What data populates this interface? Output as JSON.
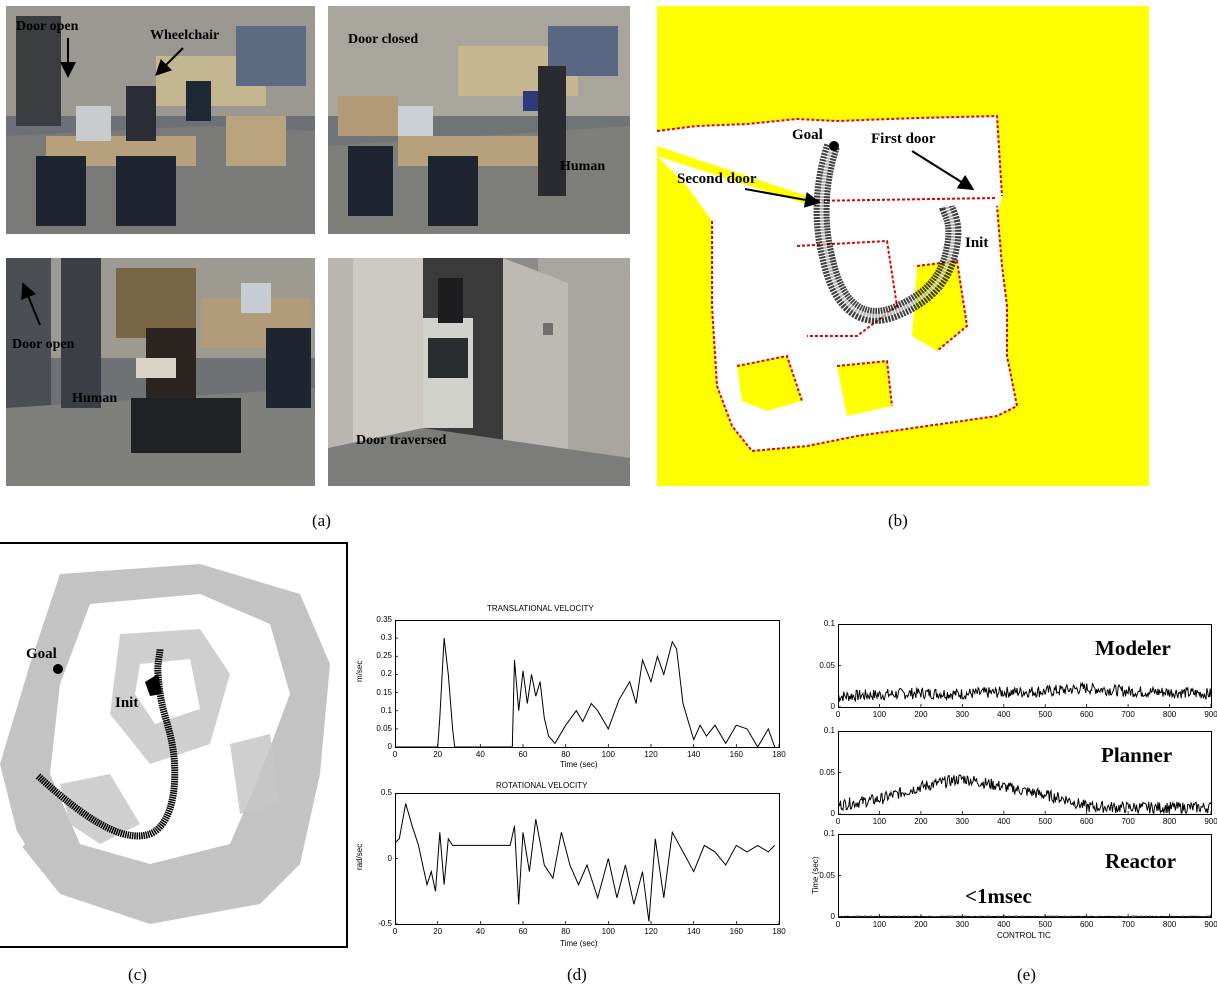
{
  "panel_a": {
    "caption": "(a)",
    "frames": [
      {
        "labels": [
          "Door open",
          "Wheelchair"
        ]
      },
      {
        "labels": [
          "Door closed",
          "Human"
        ]
      },
      {
        "labels": [
          "Door open",
          "Human"
        ]
      },
      {
        "labels": [
          "Door traversed"
        ]
      }
    ]
  },
  "panel_b": {
    "caption": "(b)",
    "labels": {
      "goal": "Goal",
      "first_door": "First door",
      "second_door": "Second door",
      "init": "Init"
    },
    "colors": {
      "background": "#ffff00",
      "obstacle": "#e00000",
      "free": "#ffffff"
    }
  },
  "panel_c": {
    "caption": "(c)",
    "labels": {
      "goal": "Goal",
      "init": "Init"
    }
  },
  "panel_d": {
    "caption": "(d)",
    "top": {
      "title": "TRANSLATIONAL VELOCITY",
      "ylabel": "m/sec",
      "xlabel": "Time (sec)",
      "yticks": [
        "0.35",
        "0.3",
        "0.25",
        "0.2",
        "0.15",
        "0.1",
        "0.05",
        "0"
      ]
    },
    "bottom": {
      "title": "ROTATIONAL VELOCITY",
      "ylabel": "rad/sec",
      "xlabel": "Time (sec)",
      "yticks": [
        "0.5",
        "0",
        "-0.5"
      ]
    },
    "xticks": [
      "0",
      "20",
      "40",
      "60",
      "80",
      "100",
      "120",
      "140",
      "160",
      "180"
    ]
  },
  "panel_e": {
    "caption": "(e)",
    "plots": [
      {
        "name": "Modeler",
        "yticks": [
          "0.1",
          "0.05",
          "0"
        ]
      },
      {
        "name": "Planner",
        "yticks": [
          "0.1",
          "0.05",
          "0"
        ]
      },
      {
        "name": "Reactor",
        "yticks": [
          "0.1",
          "0.05",
          "0"
        ],
        "note": "<1msec"
      }
    ],
    "ylabel": "Time (sec)",
    "xlabel": "CONTROL TIC",
    "xticks": [
      "0",
      "100",
      "200",
      "300",
      "400",
      "500",
      "600",
      "700",
      "800",
      "900"
    ]
  },
  "chart_data": [
    {
      "type": "line",
      "title": "TRANSLATIONAL VELOCITY",
      "xlabel": "Time (sec)",
      "ylabel": "m/sec",
      "xlim": [
        0,
        180
      ],
      "ylim": [
        0,
        0.35
      ],
      "x": [
        0,
        20,
        21,
        23,
        25,
        27,
        28,
        55,
        56,
        58,
        60,
        62,
        64,
        66,
        68,
        70,
        72,
        75,
        80,
        85,
        88,
        92,
        95,
        100,
        105,
        110,
        113,
        116,
        120,
        123,
        126,
        130,
        132,
        135,
        140,
        143,
        146,
        150,
        155,
        160,
        165,
        170,
        175,
        178
      ],
      "y": [
        0,
        0,
        0.08,
        0.3,
        0.2,
        0.05,
        0,
        0,
        0.24,
        0.1,
        0.21,
        0.12,
        0.2,
        0.14,
        0.18,
        0.08,
        0.03,
        0.01,
        0.06,
        0.1,
        0.07,
        0.12,
        0.1,
        0.05,
        0.13,
        0.18,
        0.12,
        0.24,
        0.18,
        0.25,
        0.2,
        0.29,
        0.27,
        0.12,
        0.02,
        0.06,
        0.03,
        0.06,
        0.01,
        0.06,
        0.05,
        0,
        0.05,
        0
      ]
    },
    {
      "type": "line",
      "title": "ROTATIONAL VELOCITY",
      "xlabel": "Time (sec)",
      "ylabel": "rad/sec",
      "xlim": [
        0,
        180
      ],
      "ylim": [
        -0.5,
        0.5
      ],
      "x": [
        0,
        2,
        5,
        8,
        11,
        13,
        15,
        17,
        19,
        21,
        23,
        25,
        27,
        30,
        40,
        50,
        54,
        56,
        58,
        60,
        63,
        66,
        70,
        74,
        78,
        82,
        86,
        90,
        95,
        100,
        104,
        108,
        112,
        116,
        119,
        122,
        126,
        130,
        135,
        140,
        145,
        150,
        155,
        160,
        165,
        170,
        175,
        178
      ],
      "y": [
        0.12,
        0.15,
        0.42,
        0.25,
        0.1,
        -0.05,
        -0.2,
        -0.1,
        -0.25,
        0.2,
        -0.2,
        0.15,
        0.1,
        0.1,
        0.1,
        0.1,
        0.1,
        0.25,
        -0.35,
        0.2,
        -0.1,
        0.3,
        -0.05,
        -0.15,
        0.2,
        -0.05,
        -0.2,
        -0.05,
        -0.3,
        0.0,
        -0.3,
        -0.05,
        -0.35,
        -0.1,
        -0.48,
        0.15,
        -0.3,
        0.2,
        0.05,
        -0.1,
        0.1,
        0.05,
        -0.05,
        0.1,
        0.05,
        0.1,
        0.05,
        0.1
      ]
    },
    {
      "type": "line",
      "title": "Modeler",
      "xlabel": "",
      "ylabel": "",
      "xlim": [
        0,
        900
      ],
      "ylim": [
        0,
        0.1
      ],
      "x": [
        0,
        100,
        200,
        300,
        400,
        500,
        600,
        700,
        800,
        900
      ],
      "y": [
        0.01,
        0.012,
        0.014,
        0.013,
        0.015,
        0.016,
        0.02,
        0.016,
        0.015,
        0.013
      ]
    },
    {
      "type": "line",
      "title": "Planner",
      "xlabel": "",
      "ylabel": "",
      "xlim": [
        0,
        900
      ],
      "ylim": [
        0,
        0.1
      ],
      "x": [
        0,
        100,
        200,
        250,
        300,
        350,
        400,
        450,
        500,
        550,
        600,
        700,
        800,
        900
      ],
      "y": [
        0.008,
        0.015,
        0.03,
        0.035,
        0.04,
        0.035,
        0.03,
        0.025,
        0.02,
        0.015,
        0.006,
        0.005,
        0.005,
        0.005
      ]
    },
    {
      "type": "line",
      "title": "Reactor",
      "xlabel": "CONTROL TIC",
      "ylabel": "Time (sec)",
      "xlim": [
        0,
        900
      ],
      "ylim": [
        0,
        0.1
      ],
      "x": [
        0,
        900
      ],
      "y": [
        0.0005,
        0.0005
      ]
    }
  ]
}
